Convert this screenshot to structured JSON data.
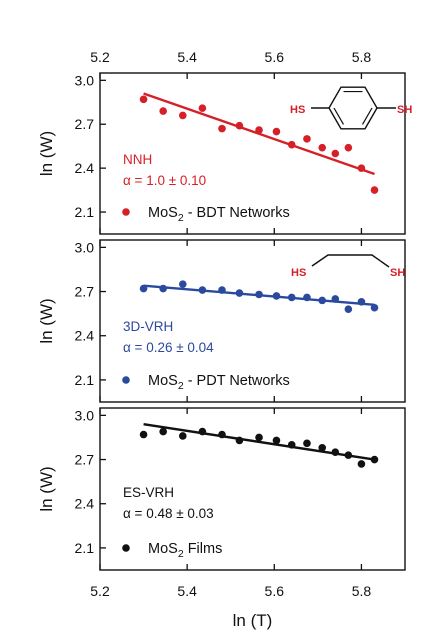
{
  "chart_data": [
    {
      "type": "scatter",
      "panel": "top",
      "xlim": [
        5.2,
        5.9
      ],
      "ylim": [
        1.95,
        3.05
      ],
      "yticks": [
        "3.0",
        "2.7",
        "2.4",
        "2.1"
      ],
      "ylabel": "ln (W)",
      "legend_label": "MoS",
      "legend_sub": "2",
      "legend_suffix": " - BDT Networks",
      "model_label": "NNH",
      "alpha_label": "α = 1.0 ± 0.10",
      "color": "#d62028",
      "points": [
        {
          "x": 5.3,
          "y": 2.87
        },
        {
          "x": 5.345,
          "y": 2.79
        },
        {
          "x": 5.39,
          "y": 2.76
        },
        {
          "x": 5.435,
          "y": 2.81
        },
        {
          "x": 5.48,
          "y": 2.67
        },
        {
          "x": 5.52,
          "y": 2.69
        },
        {
          "x": 5.565,
          "y": 2.66
        },
        {
          "x": 5.605,
          "y": 2.65
        },
        {
          "x": 5.64,
          "y": 2.56
        },
        {
          "x": 5.675,
          "y": 2.6
        },
        {
          "x": 5.71,
          "y": 2.54
        },
        {
          "x": 5.74,
          "y": 2.5
        },
        {
          "x": 5.77,
          "y": 2.54
        },
        {
          "x": 5.8,
          "y": 2.4
        },
        {
          "x": 5.83,
          "y": 2.25
        }
      ],
      "fit": [
        [
          5.3,
          2.91
        ],
        [
          5.83,
          2.36
        ]
      ],
      "molecule": {
        "left": "HS",
        "right": "SH",
        "shape": "benzene"
      }
    },
    {
      "type": "scatter",
      "panel": "middle",
      "xlim": [
        5.2,
        5.9
      ],
      "ylim": [
        1.95,
        3.05
      ],
      "yticks": [
        "3.0",
        "2.7",
        "2.4",
        "2.1"
      ],
      "ylabel": "ln (W)",
      "legend_label": "MoS",
      "legend_sub": "2",
      "legend_suffix": " - PDT Networks",
      "model_label": "3D-VRH",
      "alpha_label": "α = 0.26 ± 0.04",
      "color": "#2b4a9e",
      "points": [
        {
          "x": 5.3,
          "y": 2.72
        },
        {
          "x": 5.345,
          "y": 2.72
        },
        {
          "x": 5.39,
          "y": 2.75
        },
        {
          "x": 5.435,
          "y": 2.71
        },
        {
          "x": 5.48,
          "y": 2.71
        },
        {
          "x": 5.52,
          "y": 2.69
        },
        {
          "x": 5.565,
          "y": 2.68
        },
        {
          "x": 5.605,
          "y": 2.67
        },
        {
          "x": 5.64,
          "y": 2.66
        },
        {
          "x": 5.675,
          "y": 2.66
        },
        {
          "x": 5.71,
          "y": 2.64
        },
        {
          "x": 5.74,
          "y": 2.65
        },
        {
          "x": 5.77,
          "y": 2.58
        },
        {
          "x": 5.8,
          "y": 2.63
        },
        {
          "x": 5.83,
          "y": 2.59
        }
      ],
      "fit": [
        [
          5.3,
          2.74
        ],
        [
          5.83,
          2.61
        ]
      ],
      "molecule": {
        "left": "HS",
        "right": "SH",
        "shape": "chain"
      }
    },
    {
      "type": "scatter",
      "panel": "bottom",
      "xlim": [
        5.2,
        5.9
      ],
      "ylim": [
        1.95,
        3.05
      ],
      "yticks": [
        "3.0",
        "2.7",
        "2.4",
        "2.1"
      ],
      "ylabel": "ln (W)",
      "xlabel": "ln (T)",
      "xticks": [
        "5.2",
        "5.4",
        "5.6",
        "5.8"
      ],
      "legend_label": "MoS",
      "legend_sub": "2",
      "legend_suffix": " Films",
      "model_label": "ES-VRH",
      "alpha_label": "α = 0.48 ± 0.03",
      "color": "#111111",
      "points": [
        {
          "x": 5.3,
          "y": 2.87
        },
        {
          "x": 5.345,
          "y": 2.89
        },
        {
          "x": 5.39,
          "y": 2.86
        },
        {
          "x": 5.435,
          "y": 2.89
        },
        {
          "x": 5.48,
          "y": 2.87
        },
        {
          "x": 5.52,
          "y": 2.83
        },
        {
          "x": 5.565,
          "y": 2.85
        },
        {
          "x": 5.605,
          "y": 2.83
        },
        {
          "x": 5.64,
          "y": 2.8
        },
        {
          "x": 5.675,
          "y": 2.81
        },
        {
          "x": 5.71,
          "y": 2.78
        },
        {
          "x": 5.74,
          "y": 2.75
        },
        {
          "x": 5.77,
          "y": 2.73
        },
        {
          "x": 5.8,
          "y": 2.67
        },
        {
          "x": 5.83,
          "y": 2.7
        }
      ],
      "fit": [
        [
          5.3,
          2.94
        ],
        [
          5.83,
          2.7
        ]
      ]
    }
  ],
  "top_axis": {
    "xticks": [
      "5.2",
      "5.4",
      "5.6",
      "5.8"
    ]
  }
}
